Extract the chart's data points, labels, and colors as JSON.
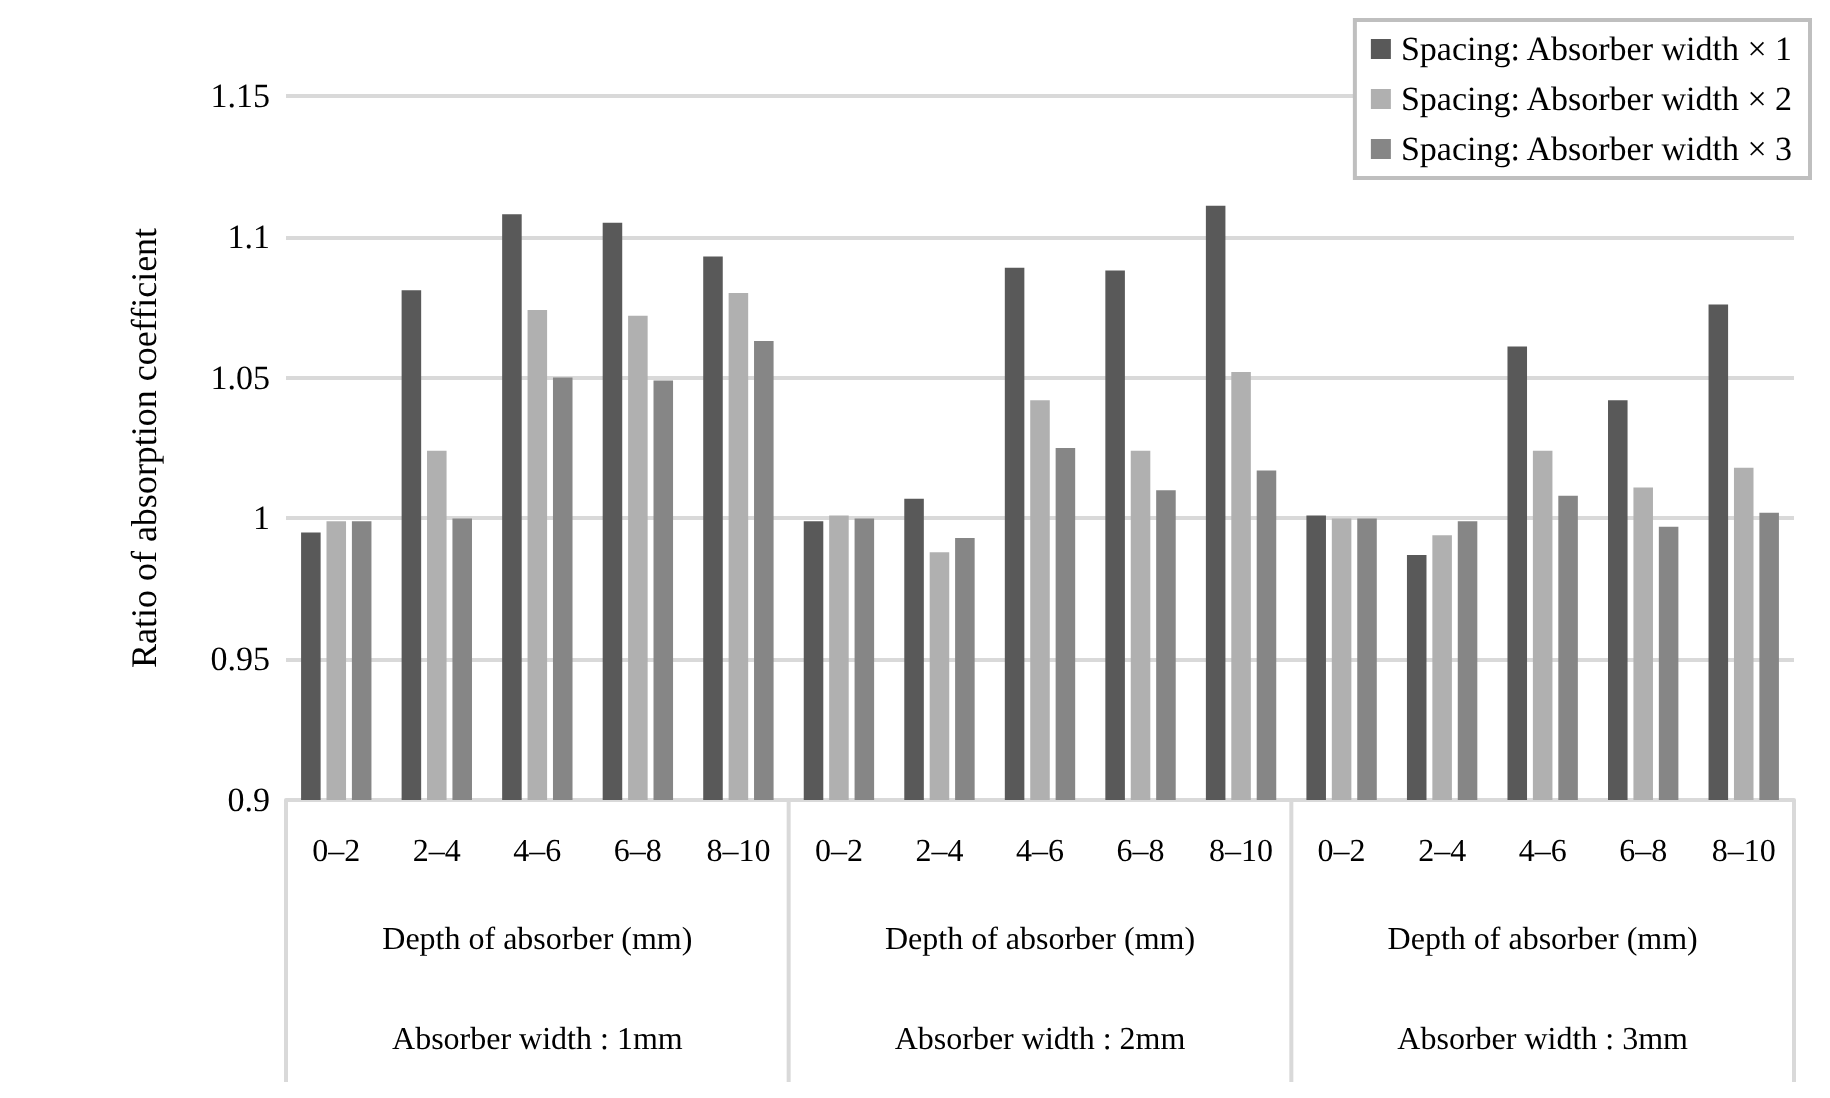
{
  "chart_data": {
    "type": "bar",
    "ylabel": "Ratio of absorption coefficient",
    "categories": [
      "0–2",
      "2–4",
      "4–6",
      "6–8",
      "8–10",
      "0–2",
      "2–4",
      "4–6",
      "6–8",
      "8–10",
      "0–2",
      "2–4",
      "4–6",
      "6–8",
      "8–10"
    ],
    "series": [
      {
        "name": "Spacing: Absorber width × 1",
        "color": "#595959",
        "values": [
          0.995,
          1.081,
          1.108,
          1.105,
          1.093,
          0.999,
          1.007,
          1.089,
          1.088,
          1.111,
          1.001,
          0.987,
          1.061,
          1.042,
          1.076
        ]
      },
      {
        "name": "Spacing: Absorber width × 2",
        "color": "#b0b0b0",
        "values": [
          0.999,
          1.024,
          1.074,
          1.072,
          1.08,
          1.001,
          0.988,
          1.042,
          1.024,
          1.052,
          1.0,
          0.994,
          1.024,
          1.011,
          1.018
        ]
      },
      {
        "name": "Spacing: Absorber width × 3",
        "color": "#868686",
        "values": [
          0.999,
          1.0,
          1.05,
          1.049,
          1.063,
          1.0,
          0.993,
          1.025,
          1.01,
          1.017,
          1.0,
          0.999,
          1.008,
          0.997,
          1.002
        ]
      }
    ],
    "ylim": [
      0.9,
      1.15
    ],
    "yticks": [
      0.9,
      0.95,
      1,
      1.05,
      1.1,
      1.15
    ],
    "grid": "y",
    "legend": "top right",
    "annotations": [
      "Depth of absorber (mm)",
      "Depth of absorber (mm)",
      "Depth of absorber (mm)",
      "Absorber width : 1mm",
      "Absorber width : 2mm",
      "Absorber width : 3mm"
    ]
  }
}
